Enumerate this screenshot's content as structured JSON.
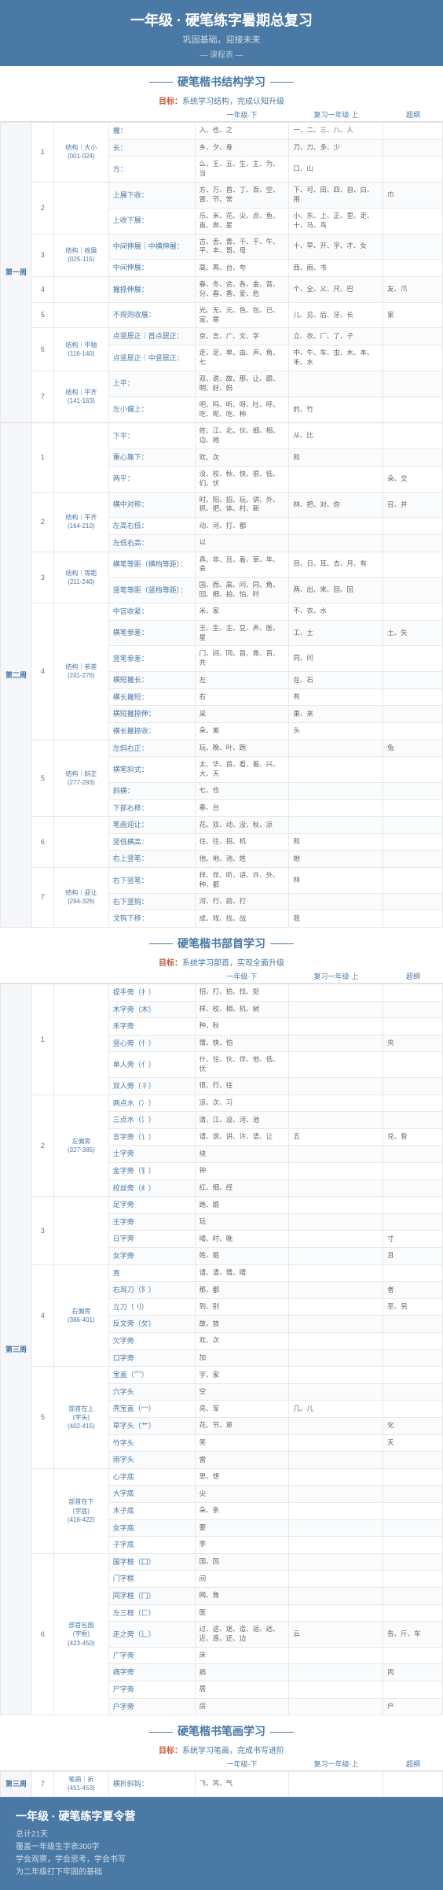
{
  "header": {
    "title": "一年级 · 硬笔练字暑期总复习",
    "subtitle": "巩固基础，迎接未来",
    "tag": "— 课程表 —"
  },
  "sections": [
    {
      "title": "硬笔楷书结构学习",
      "goal_label": "目标：",
      "goal": "系统学习结构，完成认知升级"
    },
    {
      "title": "硬笔楷书部首学习",
      "goal_label": "目标：",
      "goal": "系统学习部首，实现全面升级"
    },
    {
      "title": "硬笔楷书笔画学习",
      "goal_label": "目标：",
      "goal": "系统学习笔画，完成书写进阶"
    }
  ],
  "cols": {
    "c5": "一年级·下",
    "c6": "复习一年级·上",
    "c7": "超纲"
  },
  "footer": {
    "title": "一年级 · 硬笔练字夏令营",
    "lines": [
      "总计21天",
      "覆盖一年级生字表300字",
      "学会观察，学会思考，学会书写",
      "为二年级打下牢固的基础"
    ]
  },
  "wk1": {
    "name": "第一周",
    "days": [
      {
        "d": "1",
        "g": "结构｜大小\n(001-024)",
        "rows": [
          {
            "t": "撇：",
            "a": "入、也、之",
            "b": "一、二、三、八、人"
          },
          {
            "t": "长：",
            "a": "乡、夕、身",
            "b": "刀、力、多、少"
          },
          {
            "t": "方：",
            "a": "么、王、五、生、主、为、当",
            "b": "口、山"
          }
        ]
      },
      {
        "d": "2",
        "g": "",
        "rows": [
          {
            "t": "上展下收：",
            "a": "方、万、首、丁、百、空、冒、节、常",
            "b": "下、可、田、四、自、白、用",
            "e": "巾"
          },
          {
            "t": "上收下展：",
            "a": "乐、米、花、尖、点、鱼、直、奔、星",
            "b": "小、东、上、正、里、走、十、马、鸟"
          }
        ]
      },
      {
        "d": "3",
        "g": "结构｜收展\n(025-115)",
        "rows": [
          {
            "t": "中间伸展｜中横伸展：",
            "a": "古、舌、青、千、干、午、平、丰、哥、母",
            "b": "十、早、开、字、才、女"
          },
          {
            "t": "中间伸展：",
            "a": "高、再、台、夸",
            "b": "西、雨、书"
          }
        ]
      },
      {
        "d": "4",
        "g": "",
        "rows": [
          {
            "t": "撇捺伸展：",
            "a": "春、冬、合、各、金、音、分、春、香、爱、危",
            "b": "个、全、义、尺、巴",
            "e": "友、爪"
          }
        ]
      },
      {
        "d": "5",
        "g": "",
        "rows": [
          {
            "t": "不规则收展：",
            "a": "光、无、元、色、包、已、家、寒",
            "b": "儿、见、后、牙、长",
            "e": "家"
          }
        ]
      },
      {
        "d": "6",
        "g": "结构｜中轴\n(116-140)",
        "rows": [
          {
            "t": "点竖居正｜首点居正：",
            "a": "京、言、广、文、字",
            "b": "立、衣、厂、了、子"
          },
          {
            "t": "点竖居正｜中竖居正：",
            "a": "走、足、单、由、声、角、七",
            "b": "中、牛、车、虫、木、本、禾、水"
          }
        ]
      },
      {
        "d": "7",
        "g": "结构｜平齐\n(141-163)",
        "rows": [
          {
            "t": "上平：",
            "a": "双、说、故、那、让、跟、明、好、妈"
          },
          {
            "t": "左小偏上：",
            "a": "吧、吗、听、呀、吐、呼、吃、呢、吃、种",
            "b": "的、竹"
          }
        ]
      }
    ]
  },
  "wk2": {
    "name": "第二周",
    "days": [
      {
        "d": "1",
        "g": "",
        "rows": [
          {
            "t": "下平：",
            "a": "姓、江、北、伙、细、相、边、她",
            "b": "从、比"
          },
          {
            "t": "重心靠下：",
            "a": "欢、次",
            "b": "和"
          },
          {
            "t": "两平：",
            "a": "没、校、秋、快、很、低、们、伏",
            "e": "朵、交"
          }
        ]
      },
      {
        "d": "2",
        "g": "结构｜平齐\n(164-210)",
        "rows": [
          {
            "t": "横中对称：",
            "a": "时、阳、招、玩、讲、外、抓、把、体、村、新",
            "b": "林、把、对、你",
            "e": "召、并"
          },
          {
            "t": "左高右低：",
            "a": "动、河、打、都"
          },
          {
            "t": "左低右高：",
            "a": "以"
          }
        ]
      },
      {
        "d": "3",
        "g": "结构｜等距\n(211-240)",
        "rows": [
          {
            "t": "横笔等距（横档等距）：",
            "a": "真、非、且、着、草、年、会",
            "b": "目、日、耳、去、月、有"
          },
          {
            "t": "竖笔等距（竖档等距）：",
            "a": "国、而、高、问、同、角、回、细、拍、怕、时",
            "b": "两、出、来、回、回"
          }
        ]
      },
      {
        "d": "4",
        "g": "结构｜参差\n(241-276)",
        "rows": [
          {
            "t": "中宫收紧：",
            "a": "米、家",
            "b": "不、衣、水"
          },
          {
            "t": "横笔参差：",
            "a": "王、生、主、豆、声、医、星",
            "b": "工、土",
            "e": "土、矢"
          },
          {
            "t": "竖笔参差：",
            "a": "门、间、同、首、角、百、共",
            "b": "同、问"
          },
          {
            "t": "横短撇长：",
            "a": "左",
            "b": "在、石"
          },
          {
            "t": "横长撇短：",
            "a": "右",
            "b": "有"
          },
          {
            "t": "横短撇捺伸：",
            "a": "采",
            "b": "果、来"
          },
          {
            "t": "横长撇捺收：",
            "a": "朵、美",
            "b": "头"
          }
        ]
      },
      {
        "d": "5",
        "g": "结构｜斜正\n(277-293)",
        "rows": [
          {
            "t": "左斜右正：",
            "a": "玩、晚、叶、跑",
            "e": "兔"
          },
          {
            "t": "横笔斜式：",
            "a": "太、华、首、看、着、兴、大、天"
          },
          {
            "t": "斜横：",
            "a": "七、也"
          },
          {
            "t": "下部右移：",
            "a": "春、台"
          }
        ]
      },
      {
        "d": "6",
        "g": "",
        "rows": [
          {
            "t": "笔画迎让：",
            "a": "花、双、动、没、秋、凉"
          },
          {
            "t": "竖低横高：",
            "a": "住、往、招、机",
            "b": "和"
          },
          {
            "t": "右上竖笔：",
            "a": "他、地、池、姓",
            "b": "她"
          }
        ]
      },
      {
        "d": "7",
        "g": "结构｜迎让\n(294-326)",
        "rows": [
          {
            "t": "右下竖笔：",
            "a": "样、伴、听、讲、许、外、种、都",
            "b": "林"
          },
          {
            "t": "右下竖钩：",
            "a": "河、行、前、打"
          },
          {
            "t": "戈钩下移：",
            "a": "成、戏、找、战",
            "b": "我"
          }
        ]
      }
    ]
  },
  "wk3": {
    "name": "第三周",
    "days": [
      {
        "d": "1",
        "g": "",
        "rows": [
          {
            "t": "提手旁（扌）",
            "a": "招、打、拍、找、捉"
          },
          {
            "t": "木字旁（木）",
            "a": "样、校、相、机、树"
          },
          {
            "t": "禾字旁",
            "a": "种、秋"
          },
          {
            "t": "竖心旁（忄）",
            "a": "情、快、怕",
            "e": "央"
          },
          {
            "t": "单人旁（亻）",
            "a": "什、住、伙、伴、他、低、伏"
          },
          {
            "t": "双人旁（彳）",
            "a": "很、行、往"
          }
        ]
      },
      {
        "d": "2",
        "g": "左偏旁\n(327-385)",
        "rows": [
          {
            "t": "两点水（冫）",
            "a": "凉、次、习"
          },
          {
            "t": "三点水（氵）",
            "a": "清、江、没、河、池"
          },
          {
            "t": "言字旁（讠）",
            "a": "请、说、讲、许、语、让",
            "b": "五",
            "e": "兑、昏"
          },
          {
            "t": "土字旁",
            "a": "块"
          },
          {
            "t": "金字旁（钅）",
            "a": "钟"
          },
          {
            "t": "绞丝旁（纟）",
            "a": "红、细、经"
          }
        ]
      },
      {
        "d": "3",
        "g": "",
        "rows": [
          {
            "t": "足字旁",
            "a": "跑、跟"
          },
          {
            "t": "王字旁",
            "a": "玩"
          },
          {
            "t": "日字旁",
            "a": "晴、时、晚",
            "e": "寸"
          },
          {
            "t": "女字旁",
            "a": "姓、姐",
            "e": "且"
          }
        ]
      },
      {
        "d": "4",
        "g": "右偏旁\n(386-401)",
        "rows": [
          {
            "t": "青",
            "a": "请、清、情、晴"
          },
          {
            "t": "右耳刀（阝）",
            "a": "那、都",
            "e": "者"
          },
          {
            "t": "立刀（刂）",
            "a": "到、别",
            "e": "至、另"
          },
          {
            "t": "反文旁（攵）",
            "a": "故、放"
          },
          {
            "t": "欠字旁",
            "a": "欢、次"
          },
          {
            "t": "口字旁",
            "a": "加"
          }
        ]
      },
      {
        "d": "5",
        "g": "部首在上\n(字头)\n(402-415)",
        "rows": [
          {
            "t": "宝盖（宀）",
            "a": "字、家"
          },
          {
            "t": "穴字头",
            "a": "空"
          },
          {
            "t": "壳宝盖（冖）",
            "a": "亮、军",
            "b": "几、儿"
          },
          {
            "t": "草字头（艹）",
            "a": "花、节、草",
            "e": "化"
          },
          {
            "t": "竹字头",
            "a": "笑",
            "e": "夭"
          },
          {
            "t": "雨字头",
            "a": "雷"
          }
        ]
      },
      {
        "d": "",
        "g": "部首在下\n(字底)\n(416-422)",
        "rows": [
          {
            "t": "心字底",
            "a": "思、想"
          },
          {
            "t": "大字底",
            "a": "尖"
          },
          {
            "t": "木子底",
            "a": "朵、条"
          },
          {
            "t": "女字底",
            "a": "要"
          },
          {
            "t": "子字底",
            "a": "李"
          }
        ]
      },
      {
        "d": "6",
        "g": "部首包围\n(字框)\n(423-450)",
        "rows": [
          {
            "t": "国字框（囗）",
            "a": "国、因"
          },
          {
            "t": "门字框",
            "a": "间"
          },
          {
            "t": "同字框（冂）",
            "a": "网、角"
          },
          {
            "t": "左三框（匚）",
            "a": "医"
          },
          {
            "t": "走之旁（辶）",
            "a": "过、这、迷、造、运、远、近、连、还、边",
            "b": "云",
            "e": "告、斤、车"
          },
          {
            "t": "广字旁",
            "a": "床"
          },
          {
            "t": "病字旁",
            "a": "病",
            "e": "丙"
          },
          {
            "t": "尸字旁",
            "a": "居"
          },
          {
            "t": "户字旁",
            "a": "房",
            "e": "户"
          }
        ]
      }
    ]
  },
  "wk3b": {
    "name": "第三周",
    "days": [
      {
        "d": "7",
        "g": "笔画｜折\n(451-453)",
        "rows": [
          {
            "t": "横折斜钩：",
            "a": "飞、风、气"
          }
        ]
      }
    ]
  }
}
